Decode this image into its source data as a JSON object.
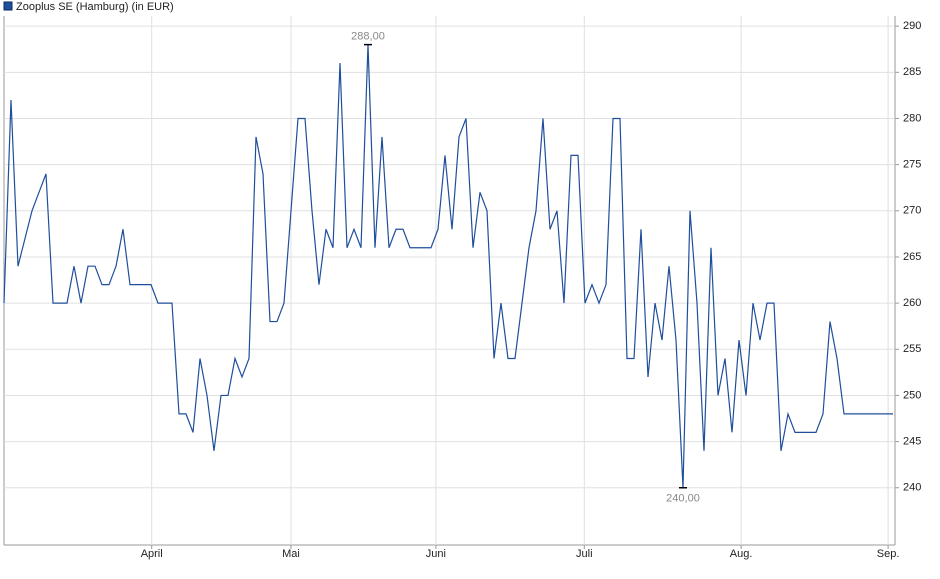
{
  "chart_data": {
    "type": "line",
    "legend": "Zooplus SE (Hamburg) (in EUR)",
    "color": "#1f4e9c",
    "values": [
      260,
      282,
      264,
      267,
      270,
      272,
      274,
      260,
      260,
      260,
      264,
      260,
      264,
      264,
      262,
      262,
      264,
      268,
      262,
      262,
      262,
      262,
      260,
      260,
      260,
      248,
      248,
      246,
      254,
      250,
      244,
      250,
      250,
      254,
      252,
      254,
      278,
      274,
      258,
      258,
      260,
      270,
      280,
      280,
      270,
      262,
      268,
      266,
      286,
      266,
      268,
      266,
      288,
      266,
      278,
      266,
      268,
      268,
      266,
      266,
      266,
      266,
      268,
      276,
      268,
      278,
      280,
      266,
      272,
      270,
      254,
      260,
      254,
      254,
      260,
      266,
      270,
      280,
      268,
      270,
      260,
      276,
      276,
      260,
      262,
      260,
      262,
      280,
      280,
      254,
      254,
      268,
      252,
      260,
      256,
      264,
      256,
      240,
      270,
      260,
      244,
      266,
      250,
      254,
      246,
      256,
      250,
      260,
      256,
      260,
      260,
      244,
      248,
      246,
      246,
      246,
      246,
      248,
      258,
      254,
      248,
      248,
      248,
      248,
      248,
      248,
      248,
      248
    ],
    "xticks": [
      {
        "value": 21.1,
        "label": "April"
      },
      {
        "value": 41,
        "label": "Mai"
      },
      {
        "value": 61.7,
        "label": "Juni"
      },
      {
        "value": 82.9,
        "label": "Juli"
      },
      {
        "value": 105.3,
        "label": "Aug."
      },
      {
        "value": 126.3,
        "label": "Sep."
      }
    ],
    "ylim": [
      233.8,
      291.1
    ],
    "yticks": [
      240,
      245,
      250,
      255,
      260,
      265,
      270,
      275,
      280,
      285,
      290
    ],
    "annotations": [
      {
        "value": 288,
        "label": "288,00"
      },
      {
        "value": 240,
        "label": "240,00"
      }
    ],
    "grid": true
  }
}
